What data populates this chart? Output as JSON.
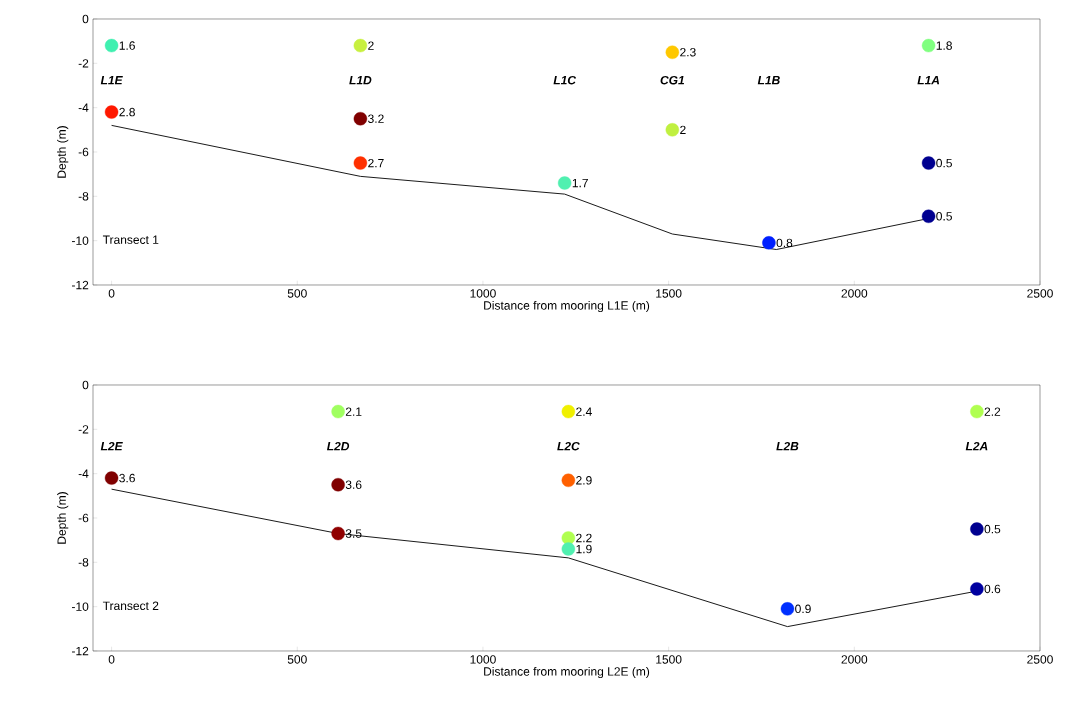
{
  "chart_data": [
    {
      "type": "scatter",
      "xlabel": "Distance from mooring L1E (m)",
      "ylabel": "Depth (m)",
      "xlim": [
        -50,
        2500
      ],
      "ylim": [
        -12,
        0
      ],
      "xticks": [
        0,
        500,
        1000,
        1500,
        2000,
        2500
      ],
      "yticks": [
        -12,
        -10,
        -8,
        -6,
        -4,
        -2,
        0
      ],
      "marker": "circle",
      "grid": false,
      "annotations": [
        "Transect 1",
        "L1E",
        "L1D",
        "L1C",
        "CG1",
        "L1B",
        "L1A",
        {
          "text": "1.6",
          "x": 0,
          "y": -1.2
        },
        {
          "text": "2.8",
          "x": 0,
          "y": -4.2
        },
        {
          "text": "2",
          "x": 670,
          "y": -1.2
        },
        {
          "text": "3.2",
          "x": 670,
          "y": -4.5
        },
        {
          "text": "2.7",
          "x": 670,
          "y": -6.5
        },
        {
          "text": "1.7",
          "x": 1220,
          "y": -7.4
        },
        {
          "text": "2.3",
          "x": 1510,
          "y": -1.5
        },
        {
          "text": "2",
          "x": 1510,
          "y": -5.0
        },
        {
          "text": "0.8",
          "x": 1770,
          "y": -10.1
        },
        {
          "text": "1.8",
          "x": 2200,
          "y": -1.2
        },
        {
          "text": "0.5",
          "x": 2200,
          "y": -6.5
        },
        {
          "text": "0.5",
          "x": 2200,
          "y": -8.9
        }
      ],
      "series": [
        {
          "type": "line",
          "marker": "none",
          "color": "#000000",
          "x": [
            0,
            670,
            1220,
            1510,
            1790,
            2200
          ],
          "values": [
            -4.8,
            -7.1,
            -7.9,
            -9.7,
            -10.4,
            -9.0
          ]
        },
        {
          "x": [
            0,
            0,
            670,
            670,
            670,
            1220,
            1510,
            1510,
            1770,
            2200,
            2200,
            2200
          ],
          "values": [
            -1.2,
            -4.2,
            -1.2,
            -4.5,
            -6.5,
            -7.4,
            -1.5,
            -5.0,
            -10.1,
            -1.2,
            -6.5,
            -8.9
          ],
          "colors": [
            "#40f0b0",
            "#ff1800",
            "#c8f040",
            "#800000",
            "#ff3000",
            "#50f0b0",
            "#ffc800",
            "#c0f040",
            "#0020ff",
            "#80ff80",
            "#000090",
            "#000090"
          ]
        }
      ]
    },
    {
      "type": "scatter",
      "xlabel": "Distance from mooring L2E (m)",
      "ylabel": "Depth (m)",
      "xlim": [
        -50,
        2500
      ],
      "ylim": [
        -12,
        0
      ],
      "xticks": [
        0,
        500,
        1000,
        1500,
        2000,
        2500
      ],
      "yticks": [
        -12,
        -10,
        -8,
        -6,
        -4,
        -2,
        0
      ],
      "marker": "circle",
      "grid": false,
      "annotations": [
        "Transect 2",
        "L2E",
        "L2D",
        "L2C",
        "L2B",
        "L2A",
        {
          "text": "3.6",
          "x": 0,
          "y": -4.2
        },
        {
          "text": "2.1",
          "x": 610,
          "y": -1.2
        },
        {
          "text": "3.6",
          "x": 610,
          "y": -4.5
        },
        {
          "text": "3.5",
          "x": 610,
          "y": -6.7
        },
        {
          "text": "2.4",
          "x": 1230,
          "y": -1.2
        },
        {
          "text": "2.9",
          "x": 1230,
          "y": -4.3
        },
        {
          "text": "2.2",
          "x": 1230,
          "y": -6.9
        },
        {
          "text": "1.9",
          "x": 1230,
          "y": -7.4
        },
        {
          "text": "0.9",
          "x": 1820,
          "y": -10.1
        },
        {
          "text": "2.2",
          "x": 2330,
          "y": -1.2
        },
        {
          "text": "0.5",
          "x": 2330,
          "y": -6.5
        },
        {
          "text": "0.6",
          "x": 2330,
          "y": -9.2
        }
      ],
      "series": [
        {
          "type": "line",
          "marker": "none",
          "color": "#000000",
          "x": [
            0,
            610,
            1230,
            1820,
            2330
          ],
          "values": [
            -4.7,
            -6.7,
            -7.8,
            -10.9,
            -9.3
          ]
        },
        {
          "x": [
            0,
            610,
            610,
            610,
            1230,
            1230,
            1230,
            1230,
            1820,
            2330,
            2330,
            2330
          ],
          "values": [
            -4.2,
            -1.2,
            -4.5,
            -6.7,
            -1.2,
            -4.3,
            -6.9,
            -7.4,
            -10.1,
            -1.2,
            -6.5,
            -9.2
          ],
          "colors": [
            "#800000",
            "#a0ff60",
            "#800000",
            "#900000",
            "#f0f000",
            "#ff6000",
            "#b0ff50",
            "#50f0b0",
            "#0030ff",
            "#b0ff50",
            "#000090",
            "#0000a0"
          ]
        }
      ]
    }
  ]
}
